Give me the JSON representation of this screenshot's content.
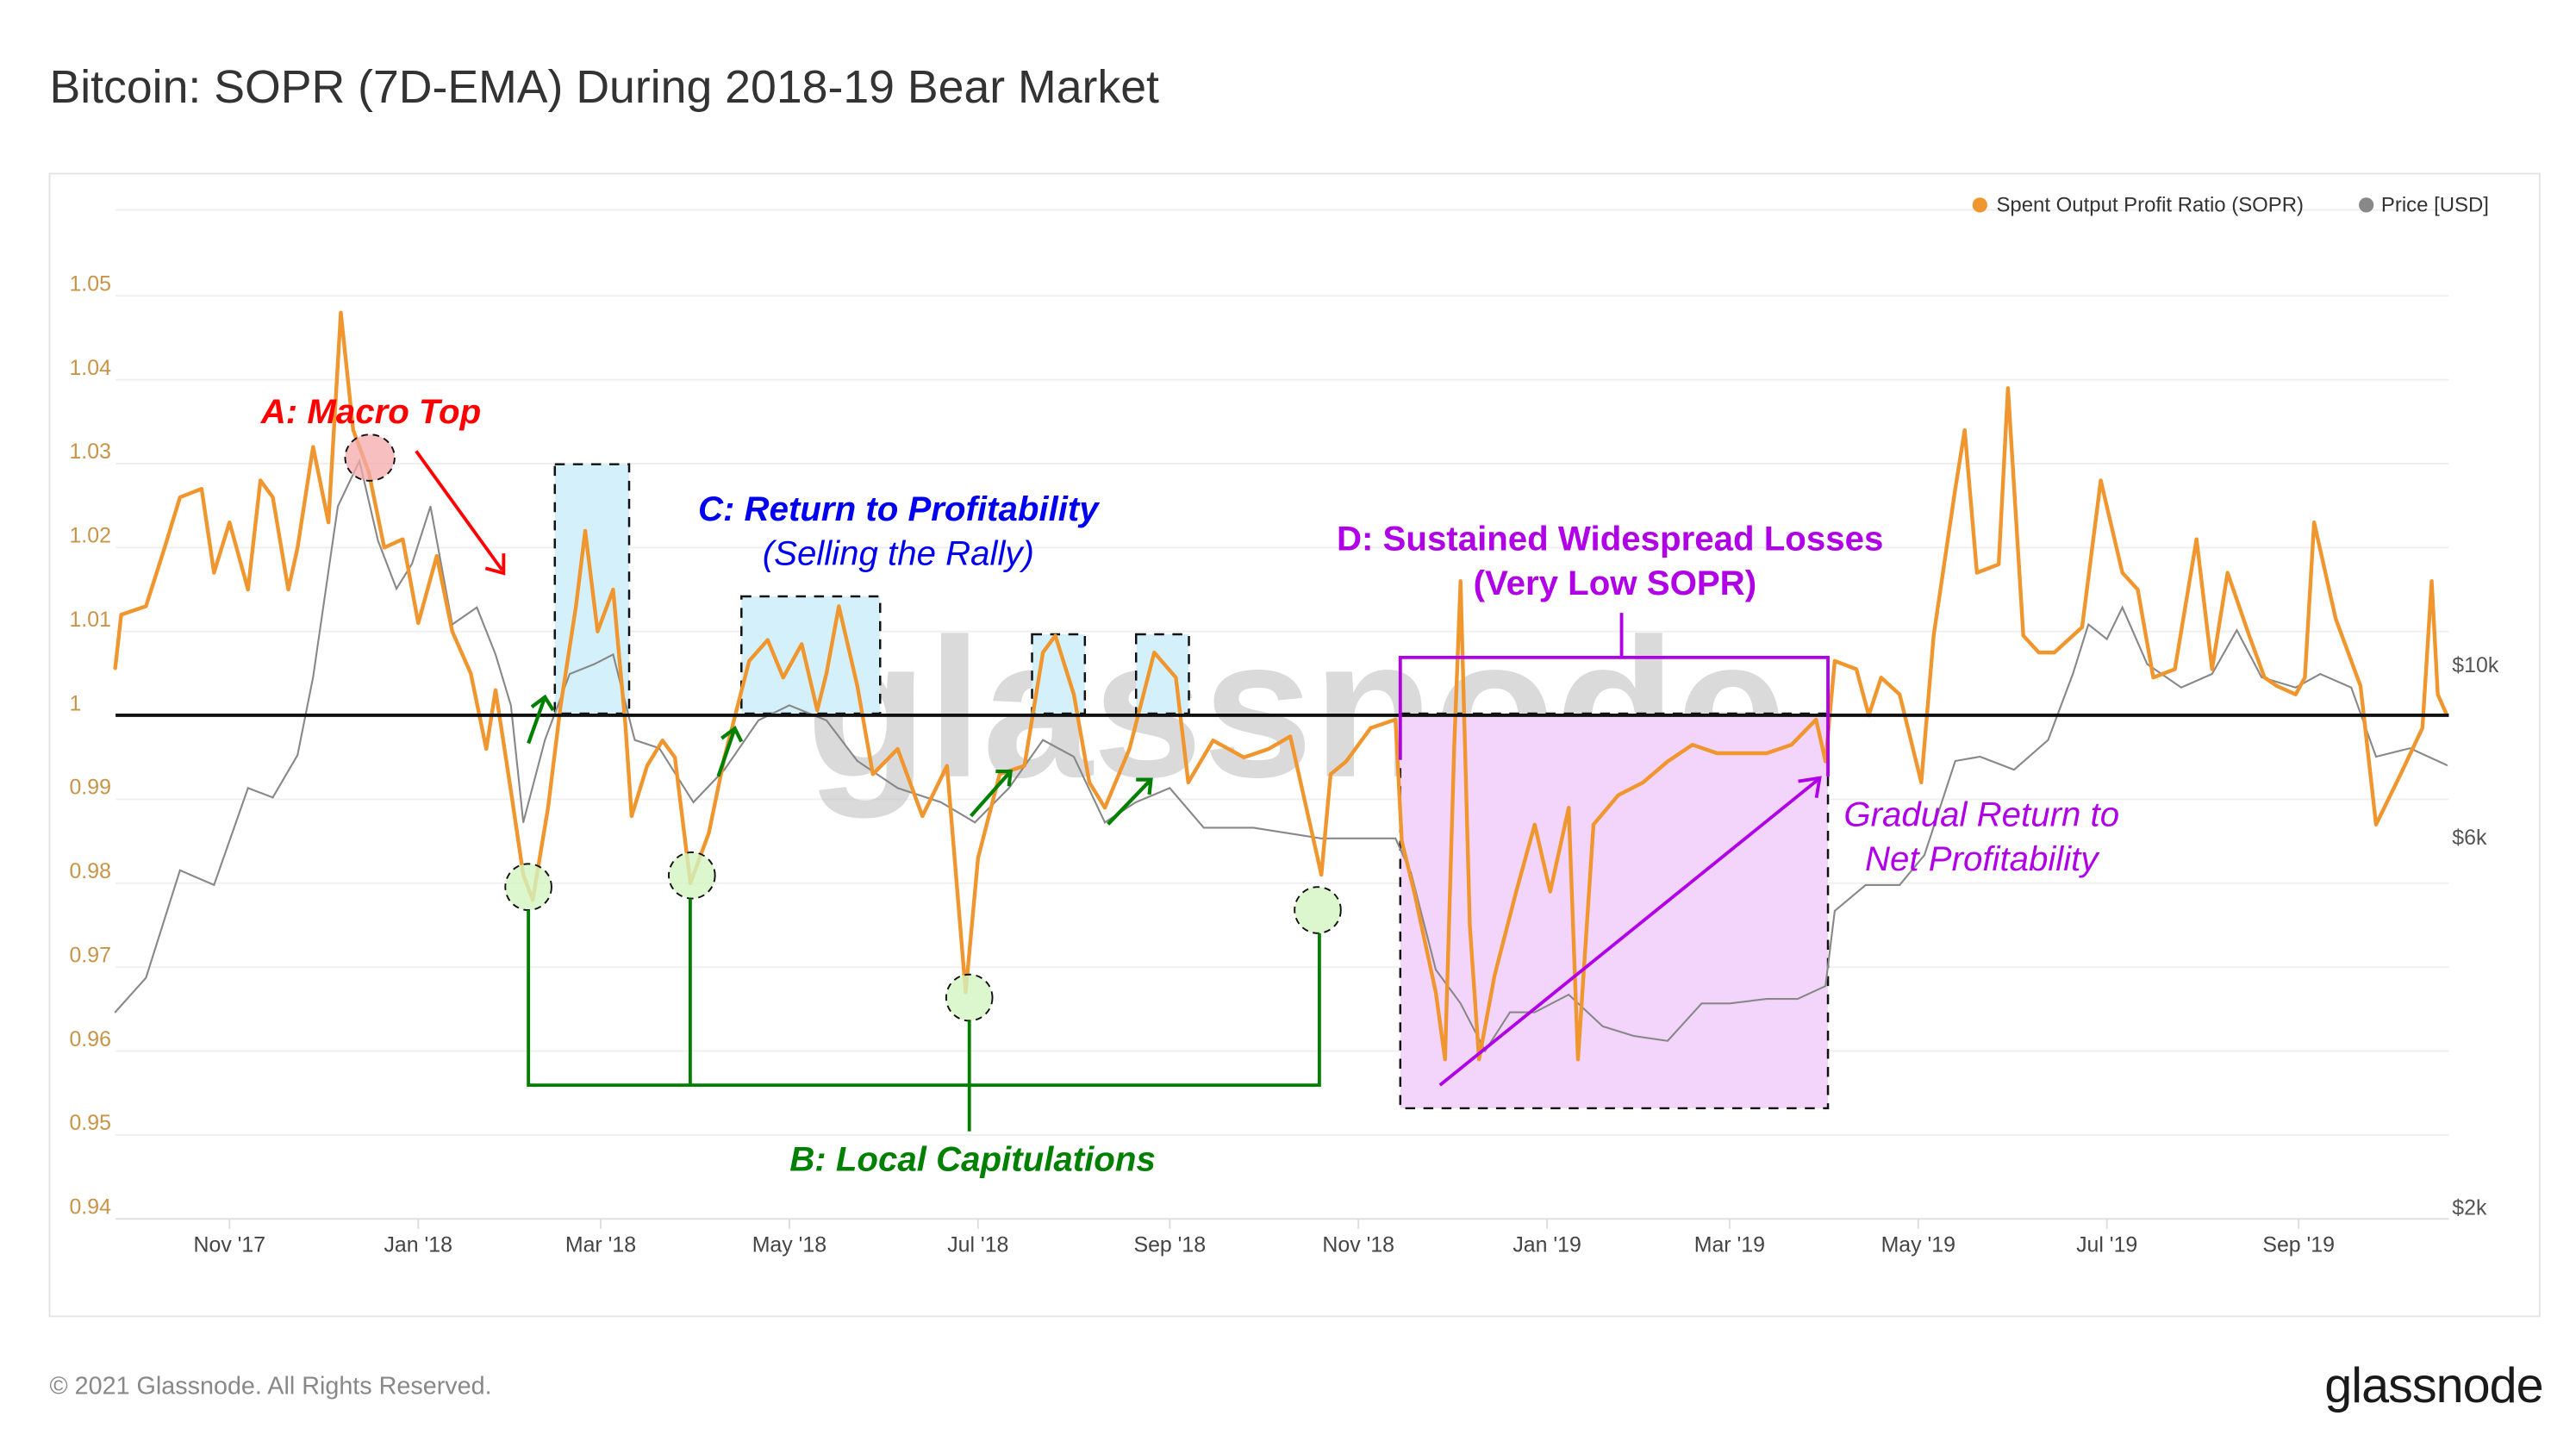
{
  "title": "Bitcoin: SOPR (7D-EMA) During 2018-19 Bear Market",
  "footer": {
    "copyright": "© 2021 Glassnode. All Rights Reserved.",
    "logo": "glassnode"
  },
  "watermark": "glassnode",
  "colors": {
    "sopr": "#f0962e",
    "price": "#888888",
    "baseline": "#111111",
    "annotation_a": "#ff0000",
    "annotation_b": "#008000",
    "annotation_c": "#0000ee",
    "annotation_d": "#b000e6"
  },
  "annotations": {
    "a": "A: Macro Top",
    "b": "B: Local Capitulations",
    "c_title": "C: Return to Profitability",
    "c_sub": "(Selling the Rally)",
    "d_title": "D: Sustained Widespread Losses",
    "d_sub": "(Very Low SOPR)",
    "gradual_1": "Gradual Return to",
    "gradual_2": "Net Profitability"
  },
  "chart_data": {
    "type": "line",
    "title": "Bitcoin: SOPR (7D-EMA) During 2018-19 Bear Market",
    "grid": true,
    "legend_position": "top-right",
    "x_ticks": [
      "Nov '17",
      "Jan '18",
      "Mar '18",
      "May '18",
      "Jul '18",
      "Sep '18",
      "Nov '18",
      "Jan '19",
      "Mar '19",
      "May '19",
      "Jul '19",
      "Sep '19"
    ],
    "y_ticks": [
      "1.05",
      "1.04",
      "1.03",
      "1.02",
      "1.01",
      "1",
      "0.99",
      "0.98",
      "0.97",
      "0.96",
      "0.95",
      "0.94"
    ],
    "ylim": [
      0.94,
      1.05
    ],
    "y2_ticks": [
      "$10k",
      "$6k",
      "$2k"
    ],
    "y2_scale": "log",
    "baseline": 1,
    "series": [
      {
        "name": "Spent Output Profit Ratio (SOPR)",
        "axis": "left",
        "points": [
          [
            "2017-09-25",
            1.0055
          ],
          [
            "2017-09-27",
            1.012
          ],
          [
            "2017-10-05",
            1.013
          ],
          [
            "2017-10-11",
            1.02
          ],
          [
            "2017-10-16",
            1.026
          ],
          [
            "2017-10-23",
            1.027
          ],
          [
            "2017-10-27",
            1.017
          ],
          [
            "2017-11-01",
            1.023
          ],
          [
            "2017-11-07",
            1.015
          ],
          [
            "2017-11-11",
            1.028
          ],
          [
            "2017-11-15",
            1.026
          ],
          [
            "2017-11-20",
            1.015
          ],
          [
            "2017-11-23",
            1.02
          ],
          [
            "2017-11-28",
            1.032
          ],
          [
            "2017-12-03",
            1.023
          ],
          [
            "2017-12-07",
            1.048
          ],
          [
            "2017-12-11",
            1.034
          ],
          [
            "2017-12-16",
            1.029
          ],
          [
            "2017-12-21",
            1.02
          ],
          [
            "2017-12-27",
            1.021
          ],
          [
            "2018-01-01",
            1.011
          ],
          [
            "2018-01-07",
            1.019
          ],
          [
            "2018-01-12",
            1.01
          ],
          [
            "2018-01-18",
            1.005
          ],
          [
            "2018-01-23",
            0.996
          ],
          [
            "2018-01-26",
            1.003
          ],
          [
            "2018-01-31",
            0.991
          ],
          [
            "2018-02-04",
            0.981
          ],
          [
            "2018-02-07",
            0.978
          ],
          [
            "2018-02-12",
            0.989
          ],
          [
            "2018-02-16",
            1.001
          ],
          [
            "2018-02-21",
            1.013
          ],
          [
            "2018-02-24",
            1.022
          ],
          [
            "2018-02-28",
            1.01
          ],
          [
            "2018-03-05",
            1.015
          ],
          [
            "2018-03-09",
            0.999
          ],
          [
            "2018-03-11",
            0.988
          ],
          [
            "2018-03-16",
            0.994
          ],
          [
            "2018-03-21",
            0.997
          ],
          [
            "2018-03-25",
            0.995
          ],
          [
            "2018-03-30",
            0.98
          ],
          [
            "2018-04-05",
            0.986
          ],
          [
            "2018-04-10",
            0.995
          ],
          [
            "2018-04-18",
            1.0065
          ],
          [
            "2018-04-24",
            1.009
          ],
          [
            "2018-04-29",
            1.0045
          ],
          [
            "2018-05-05",
            1.0085
          ],
          [
            "2018-05-10",
            1.0006
          ],
          [
            "2018-05-13",
            1.005
          ],
          [
            "2018-05-17",
            1.013
          ],
          [
            "2018-05-23",
            1.0035
          ],
          [
            "2018-05-28",
            0.993
          ],
          [
            "2018-06-05",
            0.996
          ],
          [
            "2018-06-13",
            0.988
          ],
          [
            "2018-06-21",
            0.994
          ],
          [
            "2018-06-27",
            0.967
          ],
          [
            "2018-07-01",
            0.983
          ],
          [
            "2018-07-08",
            0.993
          ],
          [
            "2018-07-16",
            0.994
          ],
          [
            "2018-07-22",
            1.0075
          ],
          [
            "2018-07-26",
            1.0095
          ],
          [
            "2018-08-01",
            1.0025
          ],
          [
            "2018-08-06",
            0.992
          ],
          [
            "2018-08-11",
            0.989
          ],
          [
            "2018-08-19",
            0.996
          ],
          [
            "2018-08-27",
            1.0075
          ],
          [
            "2018-09-03",
            1.0045
          ],
          [
            "2018-09-07",
            0.992
          ],
          [
            "2018-09-15",
            0.997
          ],
          [
            "2018-09-25",
            0.995
          ],
          [
            "2018-10-03",
            0.996
          ],
          [
            "2018-10-10",
            0.9975
          ],
          [
            "2018-10-20",
            0.981
          ],
          [
            "2018-10-23",
            0.993
          ],
          [
            "2018-10-28",
            0.9945
          ],
          [
            "2018-11-05",
            0.9985
          ],
          [
            "2018-11-13",
            0.9995
          ],
          [
            "2018-11-15",
            0.985
          ],
          [
            "2018-11-19",
            0.979
          ],
          [
            "2018-11-26",
            0.967
          ],
          [
            "2018-11-29",
            0.959
          ],
          [
            "2018-12-02",
            0.9965
          ],
          [
            "2018-12-04",
            1.016
          ],
          [
            "2018-12-07",
            0.975
          ],
          [
            "2018-12-10",
            0.959
          ],
          [
            "2018-12-15",
            0.969
          ],
          [
            "2018-12-22",
            0.979
          ],
          [
            "2018-12-28",
            0.987
          ],
          [
            "2019-01-02",
            0.979
          ],
          [
            "2019-01-08",
            0.989
          ],
          [
            "2019-01-11",
            0.959
          ],
          [
            "2019-01-16",
            0.987
          ],
          [
            "2019-01-24",
            0.9905
          ],
          [
            "2019-02-01",
            0.992
          ],
          [
            "2019-02-09",
            0.9945
          ],
          [
            "2019-02-17",
            0.9965
          ],
          [
            "2019-02-25",
            0.9955
          ],
          [
            "2019-03-05",
            0.9955
          ],
          [
            "2019-03-13",
            0.9955
          ],
          [
            "2019-03-21",
            0.9965
          ],
          [
            "2019-03-29",
            0.9995
          ],
          [
            "2019-04-01",
            0.9945
          ],
          [
            "2019-04-04",
            1.0065
          ],
          [
            "2019-04-11",
            1.0055
          ],
          [
            "2019-04-15",
            1.0
          ],
          [
            "2019-04-19",
            1.0045
          ],
          [
            "2019-04-25",
            1.0025
          ],
          [
            "2019-05-02",
            0.992
          ],
          [
            "2019-05-06",
            1.0095
          ],
          [
            "2019-05-13",
            1.027
          ],
          [
            "2019-05-16",
            1.034
          ],
          [
            "2019-05-20",
            1.017
          ],
          [
            "2019-05-27",
            1.018
          ],
          [
            "2019-05-30",
            1.039
          ],
          [
            "2019-06-04",
            1.0095
          ],
          [
            "2019-06-09",
            1.0075
          ],
          [
            "2019-06-14",
            1.0075
          ],
          [
            "2019-06-23",
            1.0105
          ],
          [
            "2019-06-29",
            1.028
          ],
          [
            "2019-07-06",
            1.017
          ],
          [
            "2019-07-11",
            1.015
          ],
          [
            "2019-07-16",
            1.0045
          ],
          [
            "2019-07-23",
            1.0055
          ],
          [
            "2019-07-30",
            1.021
          ],
          [
            "2019-08-04",
            1.0055
          ],
          [
            "2019-08-09",
            1.017
          ],
          [
            "2019-08-16",
            1.0095
          ],
          [
            "2019-08-21",
            1.0045
          ],
          [
            "2019-08-25",
            1.0035
          ],
          [
            "2019-08-31",
            1.0025
          ],
          [
            "2019-09-03",
            1.0045
          ],
          [
            "2019-09-06",
            1.023
          ],
          [
            "2019-09-13",
            1.0115
          ],
          [
            "2019-09-21",
            1.0035
          ],
          [
            "2019-09-26",
            0.987
          ],
          [
            "2019-10-04",
            0.993
          ],
          [
            "2019-10-11",
            0.9985
          ],
          [
            "2019-10-14",
            1.016
          ],
          [
            "2019-10-16",
            1.0025
          ],
          [
            "2019-10-19",
            1.0
          ]
        ]
      },
      {
        "name": "Price [USD]",
        "axis": "right",
        "points": [
          [
            "2017-09-25",
            3700
          ],
          [
            "2017-10-05",
            4100
          ],
          [
            "2017-10-16",
            5640
          ],
          [
            "2017-10-27",
            5400
          ],
          [
            "2017-11-07",
            7200
          ],
          [
            "2017-11-15",
            7000
          ],
          [
            "2017-11-23",
            7940
          ],
          [
            "2017-11-28",
            10000
          ],
          [
            "2017-12-06",
            16600
          ],
          [
            "2017-12-13",
            19000
          ],
          [
            "2017-12-19",
            15000
          ],
          [
            "2017-12-25",
            13000
          ],
          [
            "2017-12-30",
            14000
          ],
          [
            "2018-01-05",
            16600
          ],
          [
            "2018-01-12",
            11700
          ],
          [
            "2018-01-20",
            12300
          ],
          [
            "2018-01-26",
            10700
          ],
          [
            "2018-01-31",
            9200
          ],
          [
            "2018-02-04",
            6500
          ],
          [
            "2018-02-11",
            8300
          ],
          [
            "2018-02-19",
            10100
          ],
          [
            "2018-02-27",
            10400
          ],
          [
            "2018-03-05",
            10700
          ],
          [
            "2018-03-12",
            8300
          ],
          [
            "2018-03-20",
            8100
          ],
          [
            "2018-03-31",
            6900
          ],
          [
            "2018-04-10",
            7600
          ],
          [
            "2018-04-21",
            8800
          ],
          [
            "2018-05-01",
            9200
          ],
          [
            "2018-05-13",
            8800
          ],
          [
            "2018-05-23",
            7800
          ],
          [
            "2018-06-05",
            7200
          ],
          [
            "2018-06-19",
            6900
          ],
          [
            "2018-06-30",
            6500
          ],
          [
            "2018-07-11",
            7200
          ],
          [
            "2018-07-22",
            8300
          ],
          [
            "2018-08-01",
            7900
          ],
          [
            "2018-08-11",
            6500
          ],
          [
            "2018-08-21",
            6900
          ],
          [
            "2018-09-01",
            7200
          ],
          [
            "2018-09-12",
            6400
          ],
          [
            "2018-09-28",
            6400
          ],
          [
            "2018-10-20",
            6200
          ],
          [
            "2018-11-13",
            6200
          ],
          [
            "2018-11-18",
            5600
          ],
          [
            "2018-11-26",
            4200
          ],
          [
            "2018-12-04",
            3800
          ],
          [
            "2018-12-12",
            3300
          ],
          [
            "2018-12-20",
            3700
          ],
          [
            "2018-12-28",
            3700
          ],
          [
            "2019-01-08",
            3900
          ],
          [
            "2019-01-19",
            3550
          ],
          [
            "2019-01-29",
            3450
          ],
          [
            "2019-02-09",
            3400
          ],
          [
            "2019-02-20",
            3800
          ],
          [
            "2019-03-01",
            3800
          ],
          [
            "2019-03-13",
            3850
          ],
          [
            "2019-03-23",
            3850
          ],
          [
            "2019-04-01",
            4000
          ],
          [
            "2019-04-04",
            5000
          ],
          [
            "2019-04-14",
            5400
          ],
          [
            "2019-04-25",
            5400
          ],
          [
            "2019-05-03",
            5900
          ],
          [
            "2019-05-13",
            7800
          ],
          [
            "2019-05-21",
            7900
          ],
          [
            "2019-06-01",
            7600
          ],
          [
            "2019-06-12",
            8300
          ],
          [
            "2019-06-20",
            10100
          ],
          [
            "2019-06-25",
            11700
          ],
          [
            "2019-07-01",
            11200
          ],
          [
            "2019-07-06",
            12300
          ],
          [
            "2019-07-14",
            10400
          ],
          [
            "2019-07-25",
            9700
          ],
          [
            "2019-08-04",
            10100
          ],
          [
            "2019-08-12",
            11500
          ],
          [
            "2019-08-20",
            10000
          ],
          [
            "2019-08-31",
            9700
          ],
          [
            "2019-09-08",
            10100
          ],
          [
            "2019-09-18",
            9700
          ],
          [
            "2019-09-26",
            7900
          ],
          [
            "2019-10-07",
            8100
          ],
          [
            "2019-10-19",
            7700
          ]
        ]
      }
    ]
  }
}
